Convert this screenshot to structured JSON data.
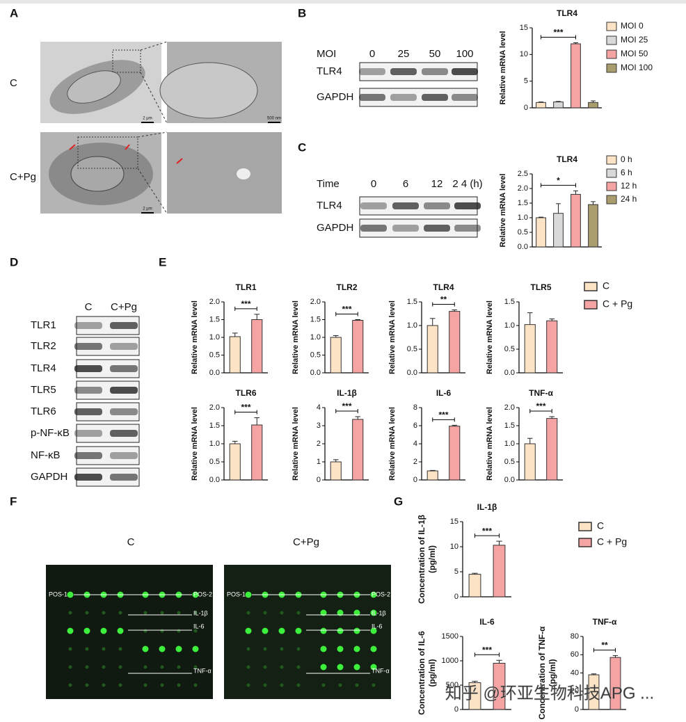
{
  "panel_labels": [
    "A",
    "B",
    "C",
    "D",
    "E",
    "F",
    "G"
  ],
  "panel_a": {
    "row_labels": [
      "C",
      "C+Pg"
    ],
    "scale_bars": [
      "2 μm",
      "500 nm",
      "2 μm"
    ]
  },
  "blot_b": {
    "header": "MOI",
    "lanes": [
      "0",
      "25",
      "50",
      "100"
    ],
    "rows": [
      "TLR4",
      "GAPDH"
    ]
  },
  "blot_c": {
    "header": "Time",
    "lanes": [
      "0",
      "6",
      "12",
      "2 4 (h)"
    ],
    "rows": [
      "TLR4",
      "GAPDH"
    ]
  },
  "blot_d": {
    "lanes": [
      "C",
      "C+Pg"
    ],
    "rows": [
      "TLR1",
      "TLR2",
      "TLR4",
      "TLR5",
      "TLR6",
      "p-NF-κB",
      "NF-κB",
      "GAPDH"
    ]
  },
  "legend_e": {
    "entries": [
      "C",
      "C + Pg"
    ],
    "colors": [
      "#fde3c5",
      "#f6a3a3"
    ]
  },
  "legend_g": {
    "entries": [
      "C",
      "C + Pg"
    ],
    "colors": [
      "#fde3c5",
      "#f6a3a3"
    ]
  },
  "panel_f": {
    "titles": [
      "C",
      "C+Pg"
    ],
    "labels": [
      "POS-1",
      "POS-2",
      "IL-1β",
      "IL-6",
      "TNF-α"
    ]
  },
  "watermark": "知乎 @环亚生物科技APG ...",
  "chart_data": [
    {
      "type": "bar",
      "title": "TLR4",
      "y_label": "Relative mRNA level",
      "categories": [
        "MOI 0",
        "MOI 25",
        "MOI 50",
        "MOI 100"
      ],
      "colors": [
        "#fde3c5",
        "#d9d9d9",
        "#f6a3a3",
        "#a99d6e"
      ],
      "values": [
        1,
        1.1,
        12,
        1
      ],
      "errors": [
        0.1,
        0.1,
        0.2,
        0.3
      ],
      "ylim": [
        0,
        15
      ],
      "yticks": [
        0,
        5,
        10,
        15
      ],
      "significance": {
        "label": "***",
        "between": [
          "MOI 0",
          "MOI 50"
        ]
      }
    },
    {
      "type": "bar",
      "title": "TLR4",
      "y_label": "Relative mRNA level",
      "categories": [
        "0 h",
        "6 h",
        "12 h",
        "24 h"
      ],
      "colors": [
        "#fde3c5",
        "#d9d9d9",
        "#f6a3a3",
        "#a99d6e"
      ],
      "values": [
        1,
        1.15,
        1.8,
        1.45
      ],
      "errors": [
        0.02,
        0.33,
        0.12,
        0.1
      ],
      "ylim": [
        0,
        2.5
      ],
      "yticks": [
        {
          "value": 0,
          "label": "0.0"
        },
        0.5,
        {
          "value": 1,
          "label": "1.0"
        },
        1.5,
        {
          "value": 2,
          "label": "2.0"
        },
        2.5
      ],
      "significance": {
        "label": "*",
        "between": [
          "0 h",
          "12 h"
        ]
      }
    },
    {
      "type": "bar",
      "title": "TLR1",
      "y_label": "Relative mRNA level",
      "colors": [
        "#fde3c5",
        "#f6a3a3"
      ],
      "values": [
        1.02,
        1.5
      ],
      "errors": [
        0.1,
        0.15
      ],
      "ylim": [
        0,
        2
      ],
      "yticks": [
        {
          "value": 0,
          "label": "0.0"
        },
        0.5,
        {
          "value": 1,
          "label": "1.0"
        },
        1.5,
        {
          "value": 2,
          "label": "2.0"
        }
      ],
      "significance": "***"
    },
    {
      "type": "bar",
      "title": "TLR2",
      "y_label": "Relative mRNA level",
      "colors": [
        "#fde3c5",
        "#f6a3a3"
      ],
      "values": [
        1,
        1.48
      ],
      "errors": [
        0.05,
        0.02
      ],
      "ylim": [
        0,
        2
      ],
      "yticks": [
        {
          "value": 0,
          "label": "0.0"
        },
        0.5,
        {
          "value": 1,
          "label": "1.0"
        },
        1.5,
        {
          "value": 2,
          "label": "2.0"
        }
      ],
      "significance": "***"
    },
    {
      "type": "bar",
      "title": "TLR4",
      "y_label": "Relative mRNA level",
      "colors": [
        "#fde3c5",
        "#f6a3a3"
      ],
      "values": [
        1,
        1.3
      ],
      "errors": [
        0.15,
        0.03
      ],
      "ylim": [
        0,
        1.5
      ],
      "yticks": [
        {
          "value": 0,
          "label": "0.0"
        },
        0.5,
        {
          "value": 1,
          "label": "1.0"
        },
        1.5
      ],
      "significance": "**"
    },
    {
      "type": "bar",
      "title": "TLR5",
      "y_label": "Relative mRNA level",
      "colors": [
        "#fde3c5",
        "#f6a3a3"
      ],
      "values": [
        1.02,
        1.1
      ],
      "errors": [
        0.25,
        0.04
      ],
      "ylim": [
        0,
        1.5
      ],
      "yticks": [
        {
          "value": 0,
          "label": "0.0"
        },
        0.5,
        {
          "value": 1,
          "label": "1.0"
        },
        1.5
      ]
    },
    {
      "type": "bar",
      "title": "TLR6",
      "y_label": "Relative mRNA level",
      "colors": [
        "#fde3c5",
        "#f6a3a3"
      ],
      "values": [
        1,
        1.52
      ],
      "errors": [
        0.07,
        0.2
      ],
      "ylim": [
        0,
        2
      ],
      "yticks": [
        {
          "value": 0,
          "label": "0.0"
        },
        0.5,
        {
          "value": 1,
          "label": "1.0"
        },
        1.5,
        {
          "value": 2,
          "label": "2.0"
        }
      ],
      "significance": "***"
    },
    {
      "type": "bar",
      "title": "IL-1β",
      "y_label": "Relative mRNA level",
      "colors": [
        "#fde3c5",
        "#f6a3a3"
      ],
      "values": [
        1,
        3.35
      ],
      "errors": [
        0.12,
        0.15
      ],
      "ylim": [
        0,
        4
      ],
      "yticks": [
        0,
        1,
        2,
        3,
        4
      ],
      "significance": "***"
    },
    {
      "type": "bar",
      "title": "IL-6",
      "y_label": "Relative mRNA level",
      "colors": [
        "#fde3c5",
        "#f6a3a3"
      ],
      "values": [
        1,
        5.95
      ],
      "errors": [
        0.05,
        0.1
      ],
      "ylim": [
        0,
        8
      ],
      "yticks": [
        0,
        2,
        4,
        6,
        8
      ],
      "significance": "***"
    },
    {
      "type": "bar",
      "title": "TNF-α",
      "y_label": "Relative mRNA level",
      "colors": [
        "#fde3c5",
        "#f6a3a3"
      ],
      "values": [
        1,
        1.7
      ],
      "errors": [
        0.15,
        0.05
      ],
      "ylim": [
        0,
        2
      ],
      "yticks": [
        {
          "value": 0,
          "label": "0.0"
        },
        0.5,
        {
          "value": 1,
          "label": "1.0"
        },
        1.5,
        {
          "value": 2,
          "label": "2.0"
        }
      ],
      "significance": "***"
    },
    {
      "type": "bar",
      "title": "IL-1β",
      "y_label": [
        "Concentration of IL-1β",
        "(pg/ml)"
      ],
      "colors": [
        "#fde3c5",
        "#f6a3a3"
      ],
      "values": [
        4.5,
        10.3
      ],
      "errors": [
        0.2,
        0.8
      ],
      "ylim": [
        0,
        15
      ],
      "yticks": [
        0,
        5,
        10,
        15
      ],
      "significance": "***"
    },
    {
      "type": "bar",
      "title": "IL-6",
      "y_label": [
        "Concentration of IL-6",
        "(pg/ml)"
      ],
      "colors": [
        "#fde3c5",
        "#f6a3a3"
      ],
      "values": [
        550,
        950
      ],
      "errors": [
        30,
        60
      ],
      "ylim": [
        0,
        1500
      ],
      "yticks": [
        0,
        500,
        1000,
        1500
      ],
      "significance": "***"
    },
    {
      "type": "bar",
      "title": "TNF-α",
      "y_label": [
        "Concentration of TNF-α",
        "(pg/ml)"
      ],
      "colors": [
        "#fde3c5",
        "#f6a3a3"
      ],
      "values": [
        38,
        57
      ],
      "errors": [
        1,
        2
      ],
      "ylim": [
        0,
        80
      ],
      "yticks": [
        0,
        20,
        40,
        60,
        80
      ],
      "significance": "**"
    }
  ]
}
